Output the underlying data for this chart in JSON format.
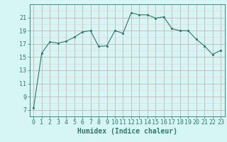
{
  "x": [
    0,
    1,
    2,
    3,
    4,
    5,
    6,
    7,
    8,
    9,
    10,
    11,
    12,
    13,
    14,
    15,
    16,
    17,
    18,
    19,
    20,
    21,
    22,
    23
  ],
  "y": [
    7.3,
    15.6,
    17.3,
    17.1,
    17.4,
    18.0,
    18.8,
    19.0,
    16.6,
    16.7,
    19.0,
    18.6,
    21.7,
    21.4,
    21.4,
    20.9,
    21.1,
    19.3,
    19.0,
    19.0,
    17.7,
    16.7,
    15.4,
    16.0
  ],
  "line_color": "#2d7a6a",
  "marker_color": "#2d7a6a",
  "bg_color": "#d6f5f5",
  "grid_color_major": "#c8a8a8",
  "grid_color_minor": "#e8d0d0",
  "xlabel": "Humidex (Indice chaleur)",
  "xlim": [
    -0.5,
    23.5
  ],
  "ylim": [
    6,
    23
  ],
  "yticks": [
    7,
    9,
    11,
    13,
    15,
    17,
    19,
    21
  ],
  "xticks": [
    0,
    1,
    2,
    3,
    4,
    5,
    6,
    7,
    8,
    9,
    10,
    11,
    12,
    13,
    14,
    15,
    16,
    17,
    18,
    19,
    20,
    21,
    22,
    23
  ],
  "tick_fontsize": 6,
  "xlabel_fontsize": 7
}
